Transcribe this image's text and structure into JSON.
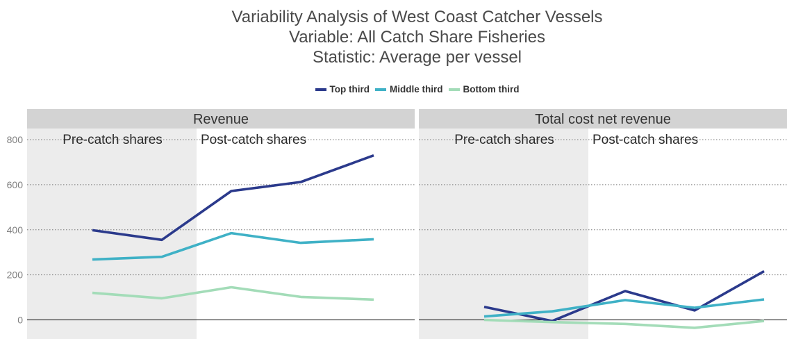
{
  "chart_data": {
    "type": "line",
    "title_lines": [
      "Variability Analysis of West Coast Catcher Vessels",
      "Variable: All Catch Share Fisheries",
      "Statistic:  Average per vessel"
    ],
    "legend": {
      "placement": "top",
      "entries": [
        "Top third",
        "Middle third",
        "Bottom third"
      ]
    },
    "colors": {
      "Top third": "#2b3a8c",
      "Middle third": "#3fb1c6",
      "Bottom third": "#a3dcb8",
      "panel_strip": "#d3d3d3",
      "pre_region": "#ececec"
    },
    "y_ticks": [
      0,
      200,
      400,
      600,
      800
    ],
    "ylim": [
      -75,
      845
    ],
    "grid": "horizontal dotted",
    "period_labels": [
      "Pre-catch shares",
      "Post-catch shares"
    ],
    "panels": [
      {
        "title": "Revenue",
        "series": [
          {
            "name": "Top third",
            "values": [
              398,
              355,
              572,
              612,
              730
            ]
          },
          {
            "name": "Middle third",
            "values": [
              268,
              280,
              385,
              342,
              358
            ]
          },
          {
            "name": "Bottom third",
            "values": [
              120,
              96,
              145,
              102,
              90
            ]
          }
        ]
      },
      {
        "title": "Total cost net revenue",
        "series": [
          {
            "name": "Top third",
            "values": [
              58,
              -5,
              128,
              42,
              216
            ]
          },
          {
            "name": "Middle third",
            "values": [
              15,
              38,
              88,
              54,
              91
            ]
          },
          {
            "name": "Bottom third",
            "values": [
              0,
              -10,
              -18,
              -35,
              -5
            ]
          }
        ]
      }
    ]
  }
}
